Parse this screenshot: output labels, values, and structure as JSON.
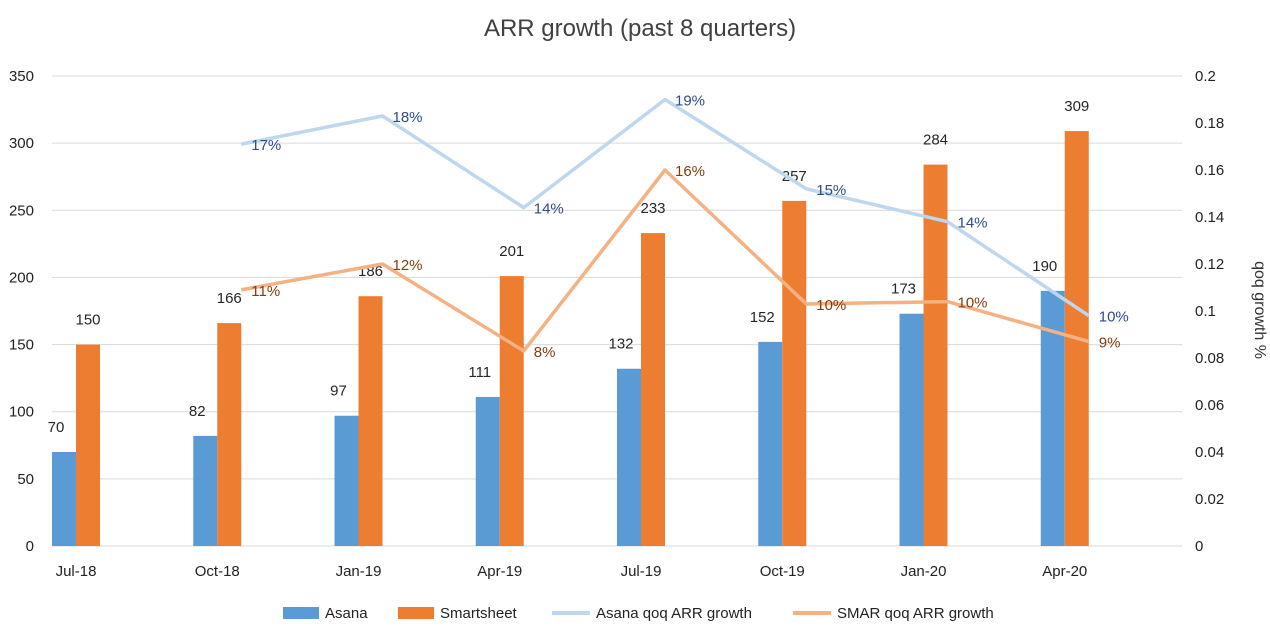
{
  "chart_data": {
    "type": "bar",
    "title": "ARR growth (past 8 quarters)",
    "categories": [
      "Jul-18",
      "Oct-18",
      "Jan-19",
      "Apr-19",
      "Jul-19",
      "Oct-19",
      "Jan-20",
      "Apr-20"
    ],
    "ylim": [
      0,
      350
    ],
    "yticks": [
      0,
      50,
      100,
      150,
      200,
      250,
      300,
      350
    ],
    "y2label": "qoq growth %",
    "y2lim": [
      0,
      0.2
    ],
    "y2ticks": [
      "0",
      "0.02",
      "0.04",
      "0.06",
      "0.08",
      "0.1",
      "0.12",
      "0.14",
      "0.16",
      "0.18",
      "0.2"
    ],
    "grid": true,
    "legend_position": "bottom",
    "series": [
      {
        "name": "Asana",
        "type": "bar",
        "axis": "left",
        "color": "#5b9bd5",
        "values": [
          70,
          82,
          97,
          111,
          132,
          152,
          173,
          190
        ],
        "labels": [
          "70",
          "82",
          "97",
          "111",
          "132",
          "152",
          "173",
          "190"
        ]
      },
      {
        "name": "Smartsheet",
        "type": "bar",
        "axis": "left",
        "color": "#ed7d31",
        "values": [
          150,
          166,
          186,
          201,
          233,
          257,
          284,
          309
        ],
        "labels": [
          "150",
          "166",
          "186",
          "201",
          "233",
          "257",
          "284",
          "309"
        ]
      },
      {
        "name": "Asana qoq ARR growth",
        "type": "line",
        "axis": "right",
        "color": "#bdd7ee",
        "label_color": "#2f4b8a",
        "values": [
          null,
          0.171,
          0.183,
          0.144,
          0.19,
          0.152,
          0.138,
          0.098
        ],
        "labels": [
          null,
          "17%",
          "18%",
          "14%",
          "19%",
          "15%",
          "14%",
          "10%"
        ]
      },
      {
        "name": "SMAR qoq ARR growth",
        "type": "line",
        "axis": "right",
        "color": "#f4b183",
        "label_color": "#843c0c",
        "values": [
          null,
          0.109,
          0.12,
          0.083,
          0.16,
          0.103,
          0.104,
          0.087
        ],
        "labels": [
          null,
          "11%",
          "12%",
          "8%",
          "16%",
          "10%",
          "10%",
          "9%"
        ]
      }
    ]
  }
}
